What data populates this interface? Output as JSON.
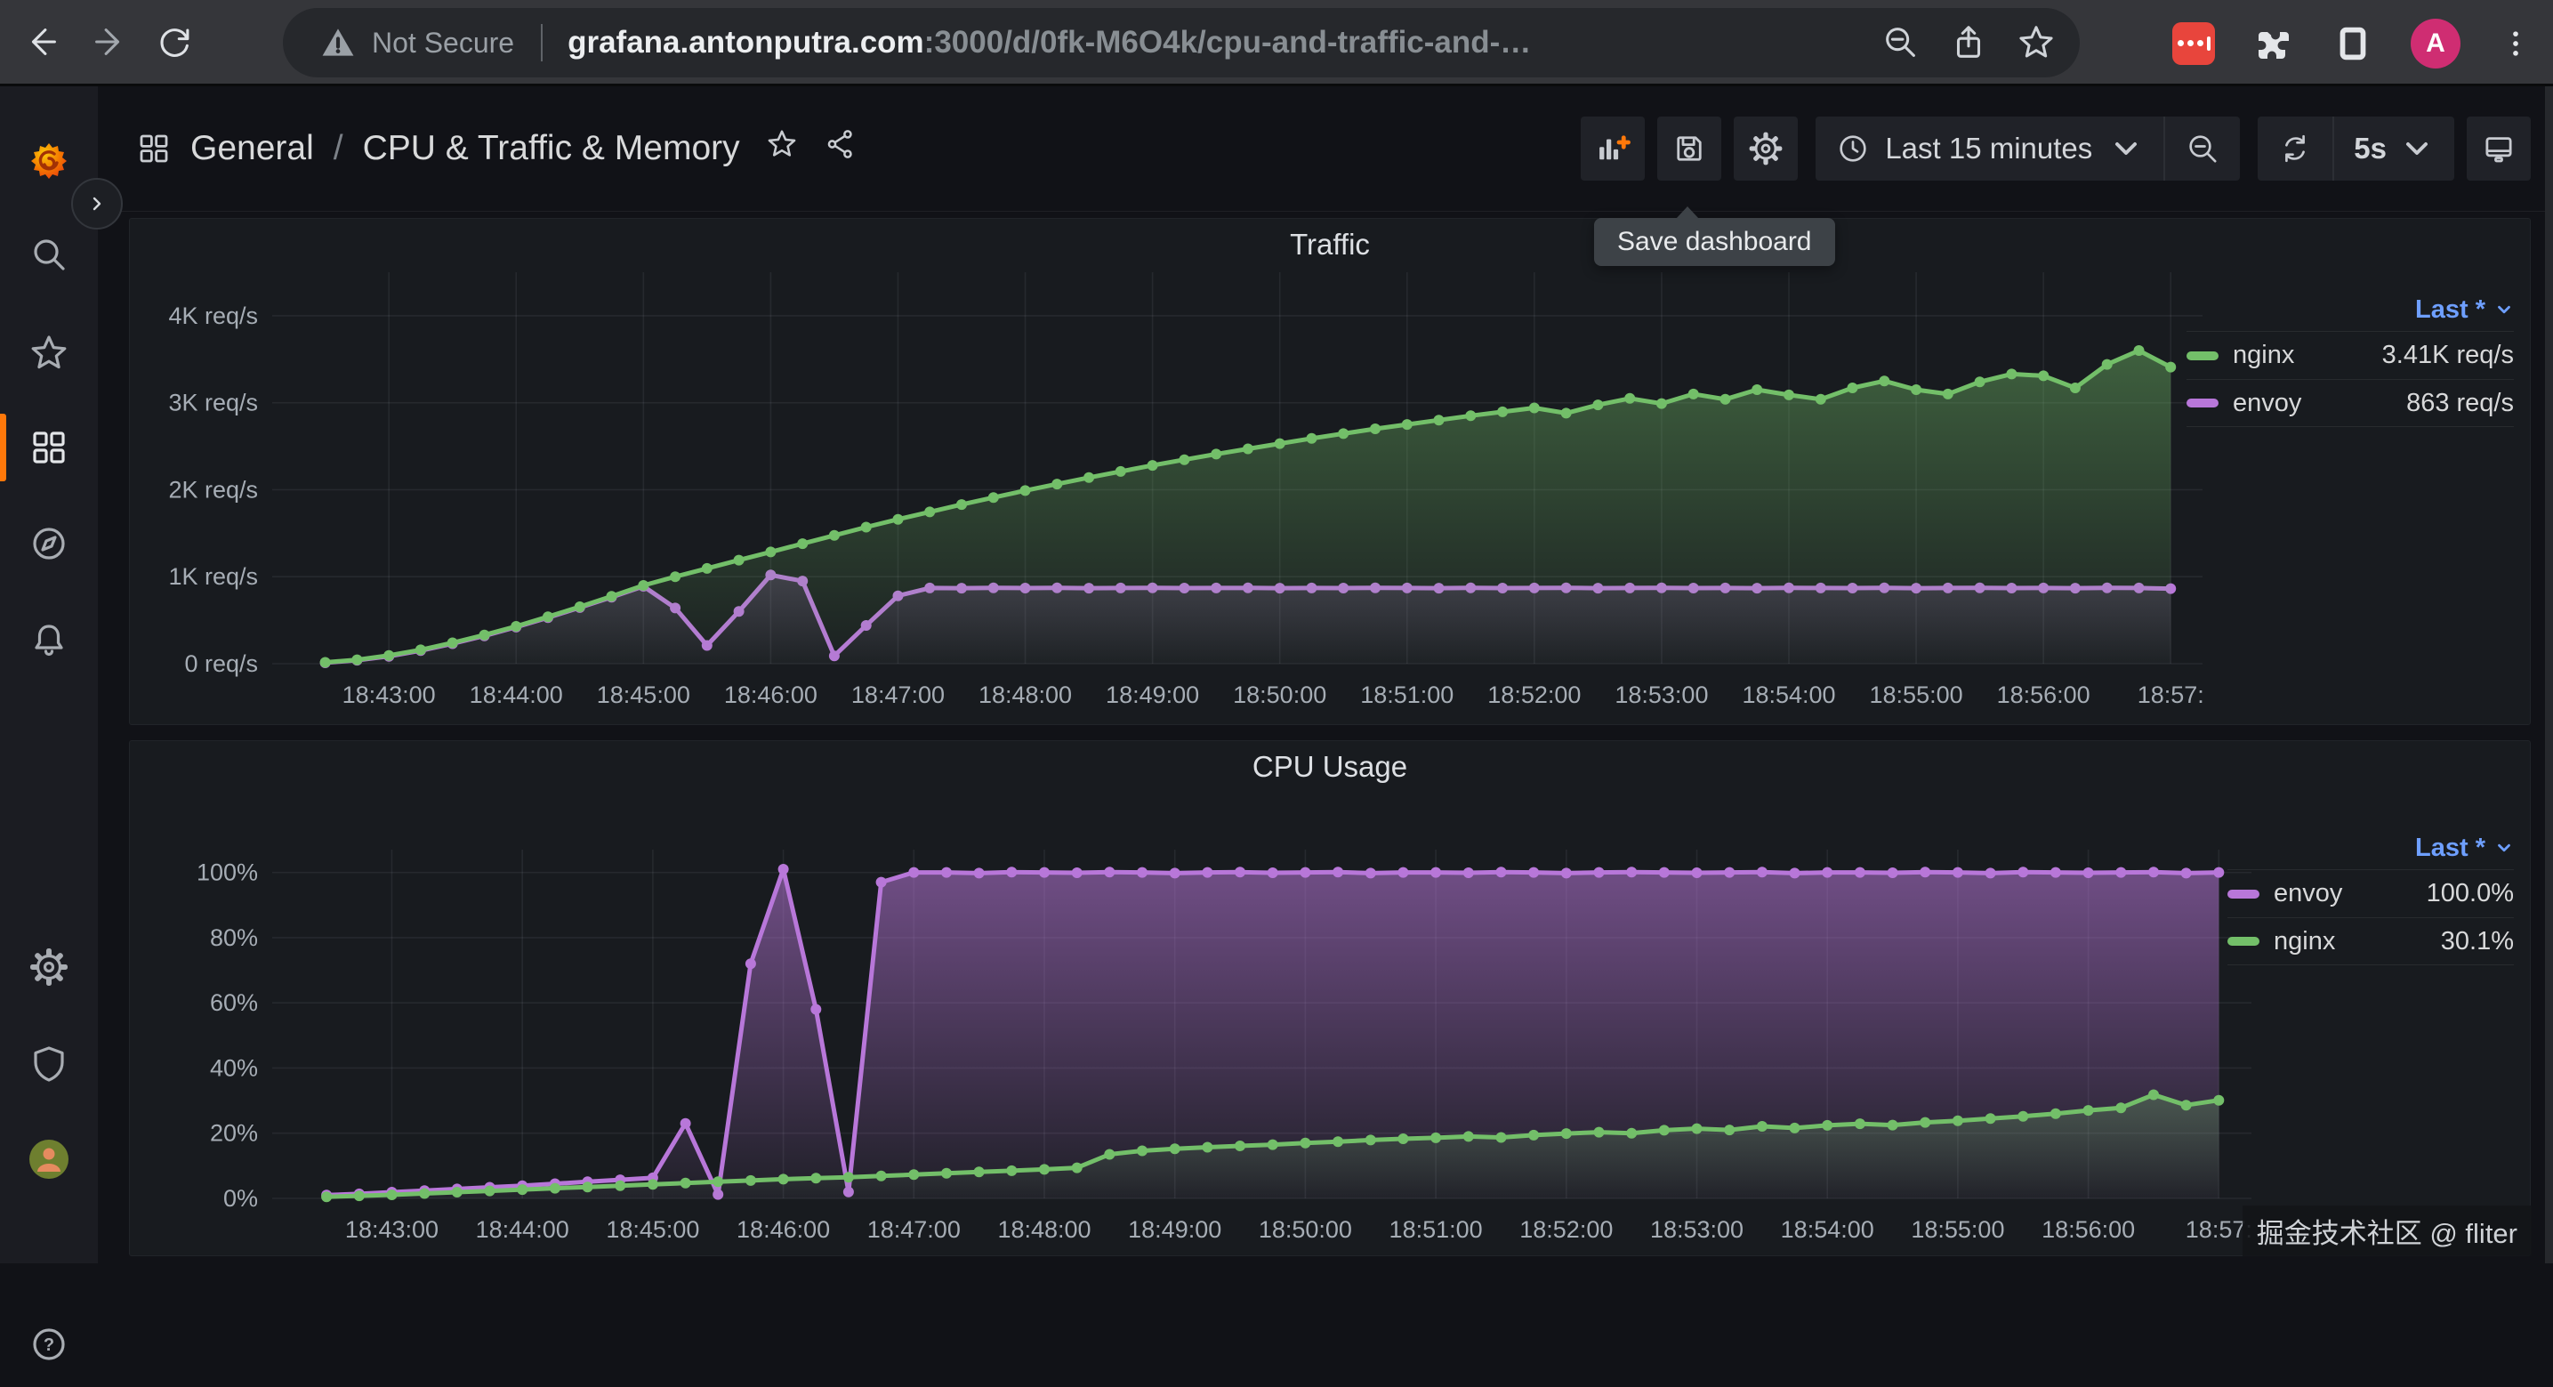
{
  "browser": {
    "security_label": "Not Secure",
    "url_host": "grafana.antonputra.com",
    "url_path": ":3000/d/0fk-M6O4k/cpu-and-traffic-and-…",
    "avatar_letter": "A"
  },
  "nav": {
    "breadcrumb_folder": "General",
    "breadcrumb_sep": "/",
    "breadcrumb_title": "CPU & Traffic & Memory",
    "time_range_label": "Last 15 minutes",
    "refresh_interval": "5s",
    "tooltip": "Save dashboard"
  },
  "watermark": "掘金技术社区 @ fliter",
  "icons": {
    "browser": [
      "back-icon",
      "forward-icon",
      "reload-icon",
      "warning-triangle-icon",
      "zoom-out-icon",
      "share-icon",
      "bookmark-star-icon",
      "password-manager-extension-icon",
      "puzzle-extensions-icon",
      "side-panel-icon",
      "kebab-menu-icon"
    ],
    "navbar": [
      "apps-grid-icon",
      "star-icon",
      "share-alt-icon",
      "add-panel-icon",
      "save-icon",
      "gear-icon",
      "clock-icon",
      "chevron-down-icon",
      "zoom-out-icon",
      "refresh-icon",
      "tv-icon"
    ],
    "sidebar": [
      "grafana-logo",
      "search-icon",
      "star-icon",
      "dashboards-grid-icon",
      "compass-icon",
      "bell-icon",
      "gear-icon",
      "shield-icon",
      "user-avatar",
      "help-icon"
    ],
    "help_glyph": "?"
  },
  "colors": {
    "nginx_green": "#73bf69",
    "envoy_purple": "#b877d9",
    "legend_link_blue": "#6e9fff",
    "accent_orange": "#ff780a",
    "avatar_pink": "#cf2d72",
    "extension_red": "#e8453c"
  },
  "chart_data": [
    {
      "type": "line",
      "title": "Traffic",
      "legend_label": "Last *",
      "xlabel": "time",
      "ylabel": "req/s",
      "xlim": [
        -25,
        885
      ],
      "ylim": [
        0,
        4500
      ],
      "t_start": 0,
      "t_step": 15,
      "x_start_time": "18:42:30",
      "y_ticks": [
        {
          "v": 0,
          "label": "0 req/s"
        },
        {
          "v": 1000,
          "label": "1K req/s"
        },
        {
          "v": 2000,
          "label": "2K req/s"
        },
        {
          "v": 3000,
          "label": "3K req/s"
        },
        {
          "v": 4000,
          "label": "4K req/s"
        }
      ],
      "x_ticks": [
        {
          "t": 30,
          "label": "18:43:00"
        },
        {
          "t": 90,
          "label": "18:44:00"
        },
        {
          "t": 150,
          "label": "18:45:00"
        },
        {
          "t": 210,
          "label": "18:46:00"
        },
        {
          "t": 270,
          "label": "18:47:00"
        },
        {
          "t": 330,
          "label": "18:48:00"
        },
        {
          "t": 390,
          "label": "18:49:00"
        },
        {
          "t": 450,
          "label": "18:50:00"
        },
        {
          "t": 510,
          "label": "18:51:00"
        },
        {
          "t": 570,
          "label": "18:52:00"
        },
        {
          "t": 630,
          "label": "18:53:00"
        },
        {
          "t": 690,
          "label": "18:54:00"
        },
        {
          "t": 750,
          "label": "18:55:00"
        },
        {
          "t": 810,
          "label": "18:56:00"
        },
        {
          "t": 870,
          "label": "18:57:"
        }
      ],
      "series": [
        {
          "name": "nginx",
          "last": "3.41K req/s",
          "color": "#73bf69",
          "z": 2,
          "fill_from": 0.42,
          "fill_to": 0.03,
          "values": [
            15,
            45,
            95,
            160,
            240,
            330,
            430,
            540,
            655,
            775,
            900,
            1000,
            1095,
            1190,
            1285,
            1380,
            1475,
            1570,
            1660,
            1745,
            1830,
            1910,
            1990,
            2065,
            2140,
            2210,
            2280,
            2345,
            2410,
            2470,
            2530,
            2590,
            2645,
            2700,
            2750,
            2800,
            2850,
            2895,
            2940,
            2880,
            2975,
            3050,
            2990,
            3100,
            3040,
            3150,
            3090,
            3040,
            3170,
            3250,
            3150,
            3100,
            3240,
            3330,
            3310,
            3170,
            3440,
            3600,
            3410
          ]
        },
        {
          "name": "envoy",
          "last": "863 req/s",
          "color": "#b877d9",
          "z": 1,
          "fill_from": 0.2,
          "fill_to": 0.02,
          "values": [
            10,
            40,
            85,
            150,
            230,
            320,
            420,
            530,
            645,
            765,
            890,
            640,
            210,
            600,
            1020,
            950,
            90,
            440,
            780,
            870,
            868,
            872,
            869,
            871,
            868,
            870,
            872,
            869,
            870,
            871,
            868,
            870,
            869,
            872,
            870,
            868,
            871,
            869,
            870,
            872,
            868,
            870,
            871,
            869,
            870,
            868,
            872,
            870,
            869,
            871,
            868,
            870,
            872,
            869,
            870,
            868,
            871,
            870,
            863
          ]
        }
      ]
    },
    {
      "type": "line",
      "title": "CPU Usage",
      "legend_label": "Last *",
      "xlabel": "time",
      "ylabel": "percent",
      "xlim": [
        -25,
        885
      ],
      "ylim": [
        0,
        107
      ],
      "t_start": 0,
      "t_step": 15,
      "x_start_time": "18:42:30",
      "y_ticks": [
        {
          "v": 0,
          "label": "0%"
        },
        {
          "v": 20,
          "label": "20%"
        },
        {
          "v": 40,
          "label": "40%"
        },
        {
          "v": 60,
          "label": "60%"
        },
        {
          "v": 80,
          "label": "80%"
        },
        {
          "v": 100,
          "label": "100%"
        }
      ],
      "x_ticks": [
        {
          "t": 30,
          "label": "18:43:00"
        },
        {
          "t": 90,
          "label": "18:44:00"
        },
        {
          "t": 150,
          "label": "18:45:00"
        },
        {
          "t": 210,
          "label": "18:46:00"
        },
        {
          "t": 270,
          "label": "18:47:00"
        },
        {
          "t": 330,
          "label": "18:48:00"
        },
        {
          "t": 390,
          "label": "18:49:00"
        },
        {
          "t": 450,
          "label": "18:50:00"
        },
        {
          "t": 510,
          "label": "18:51:00"
        },
        {
          "t": 570,
          "label": "18:52:00"
        },
        {
          "t": 630,
          "label": "18:53:00"
        },
        {
          "t": 690,
          "label": "18:54:00"
        },
        {
          "t": 750,
          "label": "18:55:00"
        },
        {
          "t": 810,
          "label": "18:56:00"
        },
        {
          "t": 870,
          "label": "18:57:"
        }
      ],
      "series": [
        {
          "name": "envoy",
          "last": "100.0%",
          "color": "#b877d9",
          "z": 1,
          "fill_from": 0.55,
          "fill_to": 0.05,
          "values": [
            1,
            1.4,
            1.9,
            2.4,
            2.9,
            3.4,
            3.9,
            4.5,
            5.1,
            5.7,
            6.3,
            23,
            1.2,
            72,
            101,
            58,
            2,
            97,
            100,
            100,
            99.8,
            100.1,
            100,
            99.9,
            100.1,
            100,
            99.8,
            100,
            100.1,
            99.9,
            100,
            100.1,
            99.8,
            100,
            100,
            99.9,
            100.1,
            100,
            99.8,
            100,
            100.1,
            100,
            99.9,
            100,
            100.1,
            99.8,
            100,
            100,
            99.9,
            100.1,
            100,
            99.8,
            100.1,
            100,
            99.9,
            100,
            100.1,
            99.8,
            100
          ]
        },
        {
          "name": "nginx",
          "last": "30.1%",
          "color": "#73bf69",
          "z": 2,
          "fill_from": 0.28,
          "fill_to": 0.02,
          "values": [
            0.5,
            0.8,
            1.1,
            1.5,
            1.9,
            2.3,
            2.7,
            3.1,
            3.5,
            3.9,
            4.3,
            4.7,
            5.1,
            5.5,
            5.9,
            6.2,
            6.5,
            6.9,
            7.3,
            7.7,
            8.1,
            8.5,
            8.9,
            9.4,
            13.5,
            14.6,
            15.2,
            15.7,
            16.1,
            16.5,
            17,
            17.4,
            17.9,
            18.3,
            18.6,
            19,
            18.7,
            19.4,
            19.9,
            20.3,
            20,
            20.9,
            21.4,
            21,
            22.1,
            21.6,
            22.4,
            22.9,
            22.5,
            23.3,
            23.8,
            24.5,
            25.2,
            26,
            27,
            27.8,
            31.8,
            28.6,
            30.1
          ]
        }
      ]
    }
  ]
}
